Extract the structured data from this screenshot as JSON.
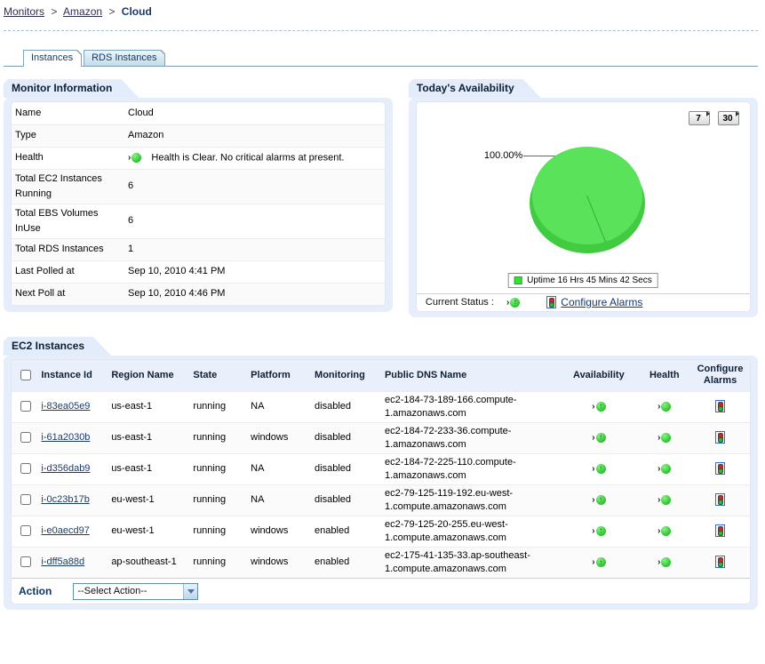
{
  "colors": {
    "accent_navy": "#0f3366",
    "panel_frame": "#e7eefb",
    "table_header_bg": "#e9f0fc",
    "tab_border": "#7da4bd",
    "status_green": "#33cc33",
    "pie_green_top": "#5be25b",
    "pie_green_rim": "#41cb41",
    "link_color": "#1c3c6e"
  },
  "breadcrumb": {
    "separator": ">",
    "links": [
      "Monitors",
      "Amazon"
    ],
    "current": "Cloud"
  },
  "tabs": [
    {
      "label": "Instances",
      "active": true
    },
    {
      "label": "RDS Instances",
      "active": false
    }
  ],
  "monitor_info": {
    "title": "Monitor Information",
    "rows": [
      {
        "label": "Name",
        "value": "Cloud"
      },
      {
        "label": "Type",
        "value": "Amazon"
      },
      {
        "label": "Health",
        "value": "Health is Clear. No critical alarms at present.",
        "health_icon": true
      },
      {
        "label": "Total EC2 Instances Running",
        "value": "6"
      },
      {
        "label": "Total EBS Volumes InUse",
        "value": "6"
      },
      {
        "label": "Total RDS Instances",
        "value": "1"
      },
      {
        "label": "Last Polled at",
        "value": "Sep 10, 2010 4:41 PM"
      },
      {
        "label": "Next Poll at",
        "value": "Sep 10, 2010 4:46 PM"
      }
    ]
  },
  "availability": {
    "title": "Today's Availability",
    "range_buttons": [
      "7",
      "30"
    ],
    "chart_data": {
      "type": "pie",
      "title": "Today's Availability",
      "slices": [
        {
          "label": "Uptime 16 Hrs 45 Mins 42 Secs",
          "value": 100.0,
          "color": "#55dd55"
        }
      ],
      "data_label": "100.00%",
      "legend_position": "bottom"
    },
    "current_status_label": "Current Status :",
    "configure_alarms_label": "Configure Alarms"
  },
  "ec2": {
    "title": "EC2 Instances",
    "columns": [
      "Instance Id",
      "Region Name",
      "State",
      "Platform",
      "Monitoring",
      "Public DNS Name",
      "Availability",
      "Health",
      "Configure Alarms"
    ],
    "rows": [
      {
        "id": "i-83ea05e9",
        "region": "us-east-1",
        "state": "running",
        "platform": "NA",
        "monitoring": "disabled",
        "dns": "ec2-184-73-189-166.compute-1.amazonaws.com"
      },
      {
        "id": "i-61a2030b",
        "region": "us-east-1",
        "state": "running",
        "platform": "windows",
        "monitoring": "disabled",
        "dns": "ec2-184-72-233-36.compute-1.amazonaws.com"
      },
      {
        "id": "i-d356dab9",
        "region": "us-east-1",
        "state": "running",
        "platform": "NA",
        "monitoring": "disabled",
        "dns": "ec2-184-72-225-110.compute-1.amazonaws.com"
      },
      {
        "id": "i-0c23b17b",
        "region": "eu-west-1",
        "state": "running",
        "platform": "NA",
        "monitoring": "disabled",
        "dns": "ec2-79-125-119-192.eu-west-1.compute.amazonaws.com"
      },
      {
        "id": "i-e0aecd97",
        "region": "eu-west-1",
        "state": "running",
        "platform": "windows",
        "monitoring": "enabled",
        "dns": "ec2-79-125-20-255.eu-west-1.compute.amazonaws.com"
      },
      {
        "id": "i-dff5a88d",
        "region": "ap-southeast-1",
        "state": "running",
        "platform": "windows",
        "monitoring": "enabled",
        "dns": "ec2-175-41-135-33.ap-southeast-1.compute.amazonaws.com"
      }
    ],
    "action_label": "Action",
    "action_select_value": "--Select Action--"
  }
}
